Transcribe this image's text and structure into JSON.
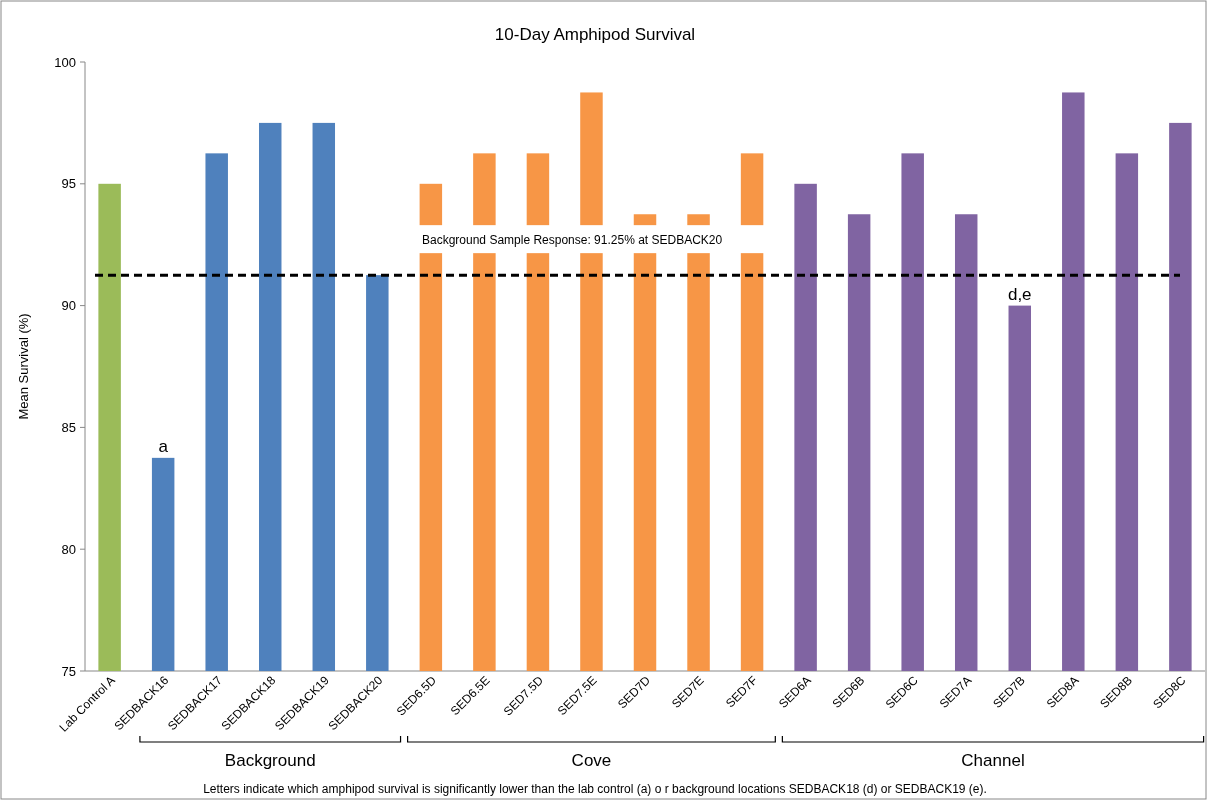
{
  "chart_data": {
    "type": "bar",
    "title": "10-Day Amphipod Survival",
    "ylabel": "Mean Survival (%)",
    "categories": [
      "Lab Control A",
      "SEDBACK16",
      "SEDBACK17",
      "SEDBACK18",
      "SEDBACK19",
      "SEDBACK20",
      "SED6.5D",
      "SED6.5E",
      "SED7.5D",
      "SED7.5E",
      "SED7D",
      "SED7E",
      "SED7F",
      "SED6A",
      "SED6B",
      "SED6C",
      "SED7A",
      "SED7B",
      "SED8A",
      "SED8B",
      "SED8C"
    ],
    "values": [
      95,
      83.75,
      96.25,
      97.5,
      97.5,
      91.25,
      95,
      96.25,
      96.25,
      98.75,
      93.75,
      93.75,
      96.25,
      95,
      93.75,
      96.25,
      93.75,
      90,
      98.75,
      96.25,
      97.5
    ],
    "colors": [
      "#9bbb59",
      "#4f81bd",
      "#4f81bd",
      "#4f81bd",
      "#4f81bd",
      "#4f81bd",
      "#f79646",
      "#f79646",
      "#f79646",
      "#f79646",
      "#f79646",
      "#f79646",
      "#f79646",
      "#8064a2",
      "#8064a2",
      "#8064a2",
      "#8064a2",
      "#8064a2",
      "#8064a2",
      "#8064a2",
      "#8064a2"
    ],
    "ylim": [
      75,
      100
    ],
    "yticks": [
      75,
      80,
      85,
      90,
      95,
      100
    ],
    "ref_lines": [
      {
        "axis": "y",
        "value": 91.25,
        "label": "Background Sample Response: 91.25% at SEDBACK20",
        "color": "#000000",
        "line_style": "dashed"
      }
    ],
    "annotations": [
      {
        "text": "a",
        "x": "SEDBACK16",
        "y": 83.75
      },
      {
        "text": "d,e",
        "x": "SED7B",
        "y": 90
      },
      "Background",
      "Cove",
      "Channel",
      "Letters indicate which amphipod survival is significantly lower than the lab control (a) o r background locations SEDBACK18 (d) or SEDBACK19 (e)."
    ]
  }
}
